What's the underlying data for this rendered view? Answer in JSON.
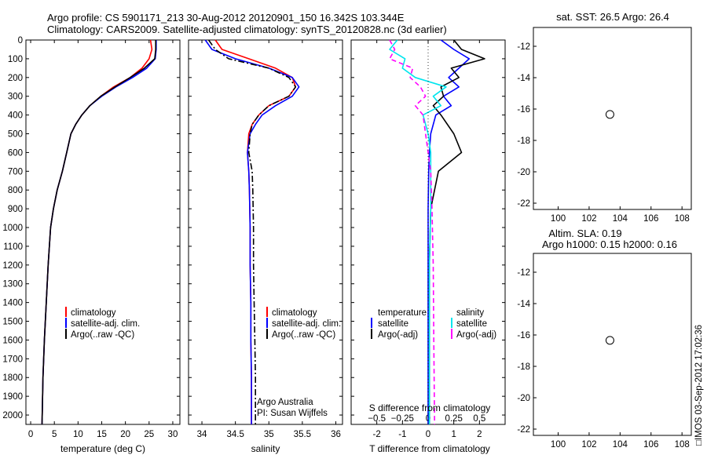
{
  "header": {
    "title_line1": "Argo profile: CS 5901171_213 30-Aug-2012 20120901_150 16.342S 103.344E",
    "title_line2": "Climatology: CARS2009. Satellite-adjusted climatology: synTS_20120828.nc (3d earlier)"
  },
  "colors": {
    "climatology": "#ff0000",
    "satellite": "#0000ff",
    "argo": "#000000",
    "salinity_satellite": "#00e5ee",
    "salinity_argo": "#ff00ff"
  },
  "chart_data": [
    {
      "type": "line",
      "name": "temperature",
      "xlabel": "temperature (deg C)",
      "ylabel": "",
      "xlim": [
        -1,
        31.5
      ],
      "ylim": [
        2050,
        0
      ],
      "xticks": [
        0,
        5,
        10,
        15,
        20,
        25,
        30
      ],
      "yticks": [
        0,
        100,
        200,
        300,
        400,
        500,
        600,
        700,
        800,
        900,
        1000,
        1100,
        1200,
        1300,
        1400,
        1500,
        1600,
        1700,
        1800,
        1900,
        2000
      ],
      "legend_position": "lower-center",
      "legend": [
        "climatology",
        "satellite-adj. clim.",
        "Argo(..raw -QC)"
      ],
      "series": [
        {
          "name": "climatology",
          "color": "#ff0000",
          "dash": "",
          "x": [
            25.3,
            25.6,
            25.0,
            23.5,
            21.0,
            17.5,
            14.8,
            12.5,
            10.8,
            9.5,
            8.5,
            7.6,
            6.7,
            5.6,
            4.8,
            4.2,
            3.7,
            3.3,
            2.9,
            2.6,
            2.4
          ],
          "y": [
            0,
            50,
            100,
            150,
            200,
            250,
            300,
            350,
            400,
            450,
            500,
            600,
            700,
            800,
            900,
            1000,
            1200,
            1400,
            1600,
            1800,
            2050
          ]
        },
        {
          "name": "satellite-adj. clim.",
          "color": "#0000ff",
          "dash": "",
          "x": [
            26.5,
            26.5,
            26.3,
            24.5,
            21.5,
            18.0,
            15.0,
            12.5,
            10.8,
            9.5,
            8.5,
            7.6,
            6.7,
            5.6,
            4.8,
            4.2,
            3.7,
            3.3,
            2.9,
            2.6,
            2.4
          ],
          "y": [
            0,
            50,
            100,
            150,
            200,
            250,
            300,
            350,
            400,
            450,
            500,
            600,
            700,
            800,
            900,
            1000,
            1200,
            1400,
            1600,
            1800,
            2050
          ]
        },
        {
          "name": "Argo(..raw -QC)",
          "color": "#000000",
          "dash": "",
          "x": [
            26.4,
            26.4,
            26.2,
            24.0,
            21.0,
            17.8,
            14.8,
            12.5,
            10.8,
            9.5,
            8.5,
            7.6,
            6.7,
            5.6,
            4.8,
            4.2,
            3.7,
            3.3,
            2.9,
            2.6,
            2.4
          ],
          "y": [
            0,
            50,
            100,
            150,
            200,
            250,
            300,
            350,
            400,
            450,
            500,
            600,
            700,
            800,
            900,
            1000,
            1200,
            1400,
            1600,
            1800,
            2050
          ]
        }
      ]
    },
    {
      "type": "line",
      "name": "salinity",
      "xlabel": "salinity",
      "ylabel": "",
      "xlim": [
        33.8,
        36.1
      ],
      "ylim": [
        2050,
        0
      ],
      "xticks": [
        34,
        34.5,
        35,
        35.5,
        36
      ],
      "xtick_labels": [
        "34",
        "34.5",
        "35",
        "35.5",
        "36"
      ],
      "legend_position": "lower-right",
      "legend": [
        "climatology",
        "satellite-adj. clim.",
        "Argo(..raw -QC)"
      ],
      "annotations": [
        "Argo Australia",
        "PI: Susan Wijffels"
      ],
      "series": [
        {
          "name": "climatology",
          "color": "#ff0000",
          "dash": "",
          "x": [
            34.2,
            34.3,
            34.7,
            35.1,
            35.35,
            35.4,
            35.3,
            35.0,
            34.85,
            34.75,
            34.7,
            34.68,
            34.7,
            34.71,
            34.72,
            34.72,
            34.73,
            34.73,
            34.74,
            34.74
          ],
          "y": [
            0,
            50,
            100,
            150,
            200,
            250,
            300,
            350,
            400,
            450,
            500,
            600,
            700,
            800,
            1000,
            1200,
            1400,
            1600,
            1800,
            2050
          ]
        },
        {
          "name": "satellite-adj. clim.",
          "color": "#0000ff",
          "dash": "",
          "x": [
            34.05,
            34.15,
            34.5,
            35.0,
            35.35,
            35.45,
            35.35,
            35.1,
            34.9,
            34.8,
            34.72,
            34.68,
            34.7,
            34.71,
            34.72,
            34.72,
            34.73,
            34.73,
            34.74,
            34.74
          ],
          "y": [
            0,
            50,
            100,
            150,
            200,
            250,
            300,
            350,
            400,
            450,
            500,
            600,
            700,
            800,
            1000,
            1200,
            1400,
            1600,
            1800,
            2050
          ]
        },
        {
          "name": "Argo(..raw -QC)",
          "color": "#000000",
          "dash": "8,3,2,3",
          "x": [
            34.1,
            34.2,
            34.4,
            35.0,
            35.3,
            35.4,
            35.3,
            35.0,
            34.85,
            34.75,
            34.72,
            34.7,
            34.75,
            34.76,
            34.77,
            34.77,
            34.78,
            34.79,
            34.8,
            34.8
          ],
          "y": [
            0,
            50,
            100,
            150,
            200,
            250,
            300,
            350,
            400,
            450,
            500,
            600,
            700,
            800,
            1000,
            1200,
            1400,
            1600,
            1800,
            2050
          ]
        }
      ]
    },
    {
      "type": "line",
      "name": "differences",
      "xlabel": "T difference from climatology",
      "xlabel_top": "S difference from climatology",
      "ylabel": "",
      "xlim": [
        -3,
        3
      ],
      "ylim": [
        2050,
        0
      ],
      "xticks": [
        -2,
        -1,
        0,
        1,
        2
      ],
      "xticks_top_values": [
        -0.5,
        -0.25,
        0,
        0.25,
        0.5
      ],
      "xticks_top_labels": [
        "−0.5",
        "−0.25",
        "0",
        "0.25",
        "0.5"
      ],
      "legend_position": "lower-center",
      "legend_temperature_title": "temperature",
      "legend_salinity_title": "salinity",
      "legend_temperature": [
        "satellite",
        "Argo(-adj)"
      ],
      "legend_salinity": [
        "satellite",
        "Argo(-adj)"
      ],
      "series": [
        {
          "name": "T satellite",
          "color": "#0000ff",
          "dash": "",
          "x": [
            0.5,
            1.0,
            1.6,
            1.2,
            0.8,
            1.2,
            0.6,
            0.9,
            0.3,
            0.1,
            0.05,
            0.02,
            0,
            0,
            0,
            0
          ],
          "y": [
            0,
            50,
            100,
            150,
            200,
            250,
            300,
            350,
            400,
            500,
            600,
            700,
            900,
            1200,
            1600,
            2050
          ]
        },
        {
          "name": "T Argo(-adj)",
          "color": "#000000",
          "dash": "",
          "x": [
            1.0,
            1.3,
            2.2,
            0.9,
            1.2,
            0.5,
            0.6,
            0.2,
            0.5,
            1.0,
            1.3,
            0.4,
            0.1,
            0.05,
            0.05,
            0.05
          ],
          "y": [
            0,
            50,
            100,
            150,
            200,
            250,
            300,
            350,
            400,
            500,
            600,
            700,
            900,
            1200,
            1600,
            2050
          ]
        },
        {
          "name": "S satellite",
          "color": "#00e5ee",
          "dash": "",
          "x": [
            -1.2,
            -1.5,
            -0.9,
            -1.0,
            -0.5,
            0.7,
            0.2,
            0.5,
            -0.2,
            0.0,
            0.1,
            0.1,
            0.1,
            0.05,
            0.05,
            0.05
          ],
          "y": [
            0,
            50,
            100,
            150,
            200,
            250,
            300,
            350,
            400,
            500,
            600,
            700,
            900,
            1200,
            1600,
            2050
          ]
        },
        {
          "name": "S Argo(-adj)",
          "color": "#ff00ff",
          "dash": "6,4",
          "x": [
            -1.5,
            -1.3,
            -1.5,
            -0.6,
            -0.7,
            -0.3,
            -0.1,
            -0.5,
            -0.2,
            -0.1,
            0.0,
            0.1,
            0.15,
            0.2,
            0.22,
            0.25
          ],
          "y": [
            0,
            50,
            100,
            150,
            200,
            250,
            300,
            350,
            400,
            500,
            600,
            700,
            900,
            1200,
            1600,
            2050
          ]
        }
      ]
    },
    {
      "type": "heatmap",
      "name": "sst-map",
      "title": "sat. SST: 26.5  Argo: 26.4",
      "xlabel": "",
      "ylabel": "",
      "xlim": [
        98.4,
        108.6
      ],
      "ylim": [
        -22.4,
        -10.8
      ],
      "xticks": [
        100,
        102,
        104,
        106,
        108
      ],
      "yticks": [
        -12,
        -14,
        -16,
        -18,
        -20,
        -22
      ],
      "marker": {
        "lon": 103.344,
        "lat": -16.342
      }
    },
    {
      "type": "heatmap",
      "name": "sla-map",
      "title_line1": "Altim. SLA: 0.19",
      "title_line2": "Argo h1000: 0.15  h2000: 0.16",
      "xlabel": "",
      "ylabel": "",
      "xlim": [
        98.4,
        108.6
      ],
      "ylim": [
        -22.4,
        -10.8
      ],
      "xticks": [
        100,
        102,
        104,
        106,
        108
      ],
      "yticks": [
        -12,
        -14,
        -16,
        -18,
        -20,
        -22
      ],
      "marker": {
        "lon": 103.344,
        "lat": -16.342
      }
    }
  ],
  "footer": {
    "timestamp": "□IMOS 03-Sep-2012 17:02:36"
  }
}
